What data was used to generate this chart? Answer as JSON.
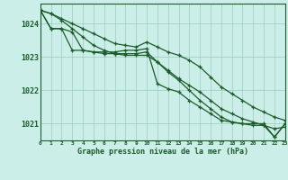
{
  "title": "Graphe pression niveau de la mer (hPa)",
  "bg_color": "#cceee8",
  "grid_color": "#99ccbb",
  "line_color": "#1a5c2a",
  "xlim": [
    0,
    23
  ],
  "ylim": [
    1020.5,
    1024.6
  ],
  "yticks": [
    1021,
    1022,
    1023,
    1024
  ],
  "xtick_labels": [
    "0",
    "1",
    "2",
    "3",
    "4",
    "5",
    "6",
    "7",
    "8",
    "9",
    "10",
    "11",
    "12",
    "13",
    "14",
    "15",
    "16",
    "17",
    "18",
    "19",
    "20",
    "21",
    "22",
    "23"
  ],
  "series": [
    [
      1024.4,
      1024.3,
      1024.15,
      1024.0,
      1023.85,
      1023.7,
      1023.55,
      1023.4,
      1023.35,
      1023.3,
      1023.45,
      1023.3,
      1023.15,
      1023.05,
      1022.9,
      1022.7,
      1022.4,
      1022.1,
      1021.9,
      1021.7,
      1021.5,
      1021.35,
      1021.2,
      1021.1
    ],
    [
      1024.4,
      1023.85,
      1023.85,
      1023.75,
      1023.2,
      1023.15,
      1023.1,
      1023.1,
      1023.1,
      1023.1,
      1023.15,
      1022.85,
      1022.6,
      1022.35,
      1022.15,
      1021.95,
      1021.7,
      1021.45,
      1021.3,
      1021.15,
      1021.05,
      1020.95,
      1020.85,
      1020.9
    ],
    [
      1024.4,
      1023.85,
      1023.85,
      1023.2,
      1023.2,
      1023.15,
      1023.15,
      1023.15,
      1023.2,
      1023.2,
      1023.25,
      1022.2,
      1022.05,
      1021.95,
      1021.7,
      1021.5,
      1021.3,
      1021.1,
      1021.05,
      1021.0,
      1021.0,
      1021.0,
      1020.6,
      1021.0
    ],
    [
      1024.4,
      1024.3,
      1024.1,
      1023.85,
      1023.6,
      1023.35,
      1023.2,
      1023.1,
      1023.05,
      1023.05,
      1023.05,
      1022.85,
      1022.55,
      1022.3,
      1022.0,
      1021.7,
      1021.45,
      1021.2,
      1021.05,
      1021.0,
      1020.95,
      1020.95,
      1020.6,
      1021.0
    ]
  ],
  "marker": "+",
  "markersize": 3.5,
  "linewidth": 0.9
}
